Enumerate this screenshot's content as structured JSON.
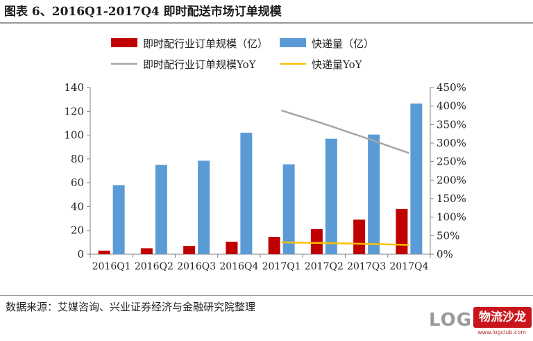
{
  "header": {
    "title": "图表 6、2016Q1-2017Q4 即时配送市场订单规模"
  },
  "footer": {
    "source": "数据来源：艾媒咨询、兴业证券经济与金融研究院整理",
    "logo_letters": "LOG",
    "logo_badge": "物流沙龙",
    "logo_domain": "www.logclub.com"
  },
  "colors": {
    "instant_bar": "#c00000",
    "express_bar": "#5b9bd5",
    "instant_yoy_line": "#a6a6a6",
    "express_yoy_line": "#ffc000"
  },
  "chart_data": {
    "type": "bar",
    "categories": [
      "2016Q1",
      "2016Q2",
      "2016Q3",
      "2016Q4",
      "2017Q1",
      "2017Q2",
      "2017Q3",
      "2017Q4"
    ],
    "series": [
      {
        "name": "即时配行业订单规模（亿）",
        "kind": "bar",
        "axis": "left",
        "values": [
          3,
          5,
          7,
          10.5,
          14.5,
          21,
          29,
          38
        ]
      },
      {
        "name": "快递量（亿）",
        "kind": "bar",
        "axis": "left",
        "values": [
          58,
          75,
          78.5,
          102,
          75.5,
          97,
          100.5,
          126.5
        ]
      },
      {
        "name": "即时配行业订单规模YoY",
        "kind": "line",
        "axis": "right",
        "values": [
          null,
          null,
          null,
          null,
          3.88,
          3.52,
          3.13,
          2.73
        ]
      },
      {
        "name": "快递量YoY",
        "kind": "line",
        "axis": "right",
        "values": [
          null,
          null,
          null,
          null,
          0.32,
          0.3,
          0.28,
          0.25
        ]
      }
    ],
    "left_axis": {
      "min": 0,
      "max": 140,
      "step": 20,
      "ticks": [
        "0",
        "20",
        "40",
        "60",
        "80",
        "100",
        "120",
        "140"
      ]
    },
    "right_axis": {
      "min": 0,
      "max": 4.5,
      "step": 0.5,
      "ticks": [
        "0%",
        "50%",
        "100%",
        "150%",
        "200%",
        "250%",
        "300%",
        "350%",
        "400%",
        "450%"
      ]
    },
    "legend_placement": "top",
    "grid": false
  }
}
